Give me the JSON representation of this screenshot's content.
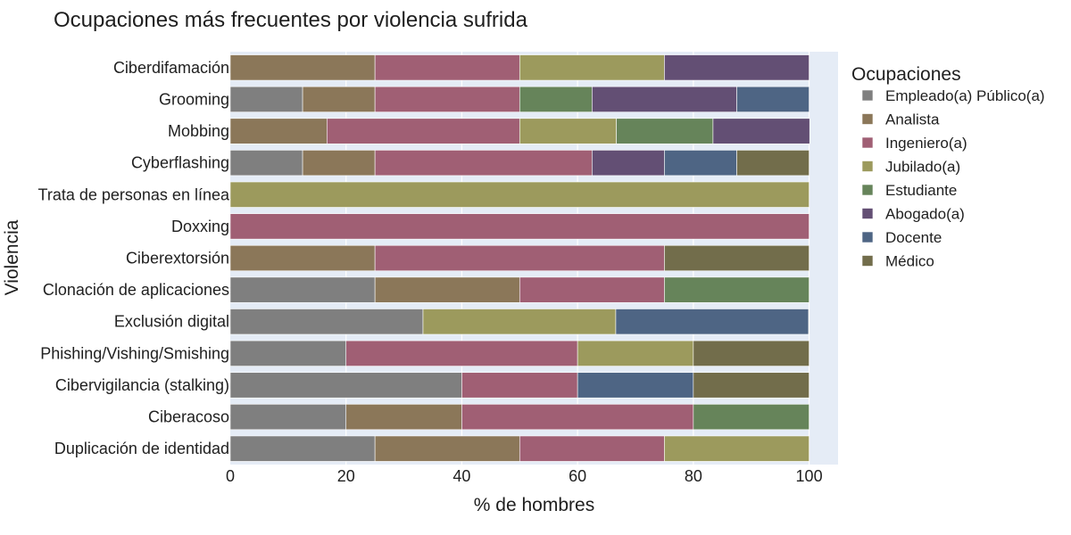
{
  "chart_data": {
    "type": "bar",
    "orientation": "horizontal",
    "stacked": true,
    "title": "Ocupaciones más frecuentes por violencia sufrida",
    "xlabel": "% de hombres",
    "ylabel": "Violencia",
    "xlim": [
      0,
      105
    ],
    "xticks": [
      "0",
      "20",
      "40",
      "60",
      "80",
      "100"
    ],
    "grid": true,
    "legend": {
      "title": "Ocupaciones",
      "position": "right"
    },
    "categories": [
      "Ciberdifamación",
      "Grooming",
      "Mobbing",
      "Cyberflashing",
      "Trata de personas en línea",
      "Doxxing",
      "Ciberextorsión",
      "Clonación de aplicaciones",
      "Exclusión digital",
      "Phishing/Vishing/Smishing",
      "Cibervigilancia (stalking)",
      "Ciberacoso",
      "Duplicación de identidad"
    ],
    "series": [
      {
        "name": "Empleado(a) Público(a)",
        "color": "#7f7f7f",
        "values": [
          0,
          12.5,
          0,
          12.5,
          0,
          0,
          0,
          25,
          33.3,
          20,
          40,
          20,
          25
        ]
      },
      {
        "name": "Analista",
        "color": "#8b7759",
        "values": [
          25,
          12.5,
          16.7,
          12.5,
          0,
          0,
          25,
          25,
          0,
          0,
          0,
          20,
          25
        ]
      },
      {
        "name": "Ingeniero(a)",
        "color": "#a05f74",
        "values": [
          25,
          25,
          33.3,
          37.5,
          0,
          100,
          50,
          25,
          0,
          40,
          20,
          40,
          25
        ]
      },
      {
        "name": "Jubilado(a)",
        "color": "#9c9a5d",
        "values": [
          25,
          0,
          16.7,
          0,
          100,
          0,
          0,
          0,
          33.3,
          20,
          0,
          0,
          25
        ]
      },
      {
        "name": "Estudiante",
        "color": "#66845a",
        "values": [
          0,
          12.5,
          16.7,
          0,
          0,
          0,
          0,
          25,
          0,
          0,
          0,
          20,
          0
        ]
      },
      {
        "name": "Abogado(a)",
        "color": "#634f74",
        "values": [
          25,
          25,
          16.7,
          12.5,
          0,
          0,
          0,
          0,
          0,
          0,
          0,
          0,
          0
        ]
      },
      {
        "name": "Docente",
        "color": "#4e6584",
        "values": [
          0,
          12.5,
          0,
          12.5,
          0,
          0,
          0,
          0,
          33.3,
          0,
          20,
          0,
          0
        ]
      },
      {
        "name": "Médico",
        "color": "#726d4b",
        "values": [
          0,
          0,
          0,
          12.5,
          0,
          0,
          25,
          0,
          0,
          20,
          20,
          0,
          0
        ]
      }
    ],
    "colors": {
      "plot_background": "#e5ecf6",
      "grid": "#ffffff",
      "bar_outline": "#ffffff"
    }
  }
}
